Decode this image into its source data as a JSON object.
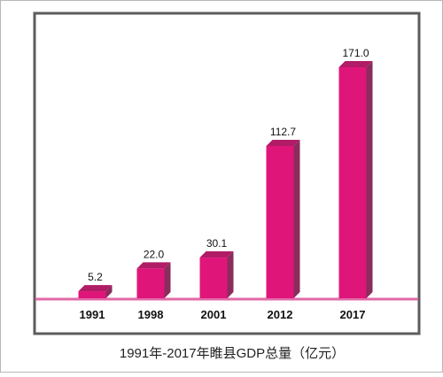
{
  "chart_data": {
    "type": "bar",
    "title": "1991年-2017年睢县GDP总量（亿元）",
    "categories": [
      "1991",
      "1998",
      "2001",
      "2012",
      "2017"
    ],
    "values": [
      5.2,
      22.0,
      30.1,
      112.7,
      171.0
    ],
    "value_labels": [
      "5.2",
      "22.0",
      "30.1",
      "112.7",
      "171.0"
    ],
    "xlabel": "",
    "ylabel": "",
    "ylim": [
      0,
      180
    ],
    "grid": false,
    "legend": "none",
    "colors": {
      "bar_front": "#e0157a",
      "bar_side": "#8a2c5c",
      "bar_top": "#b01c66",
      "frame": "#5c5c5c",
      "baseline": "#e06aa6"
    }
  }
}
